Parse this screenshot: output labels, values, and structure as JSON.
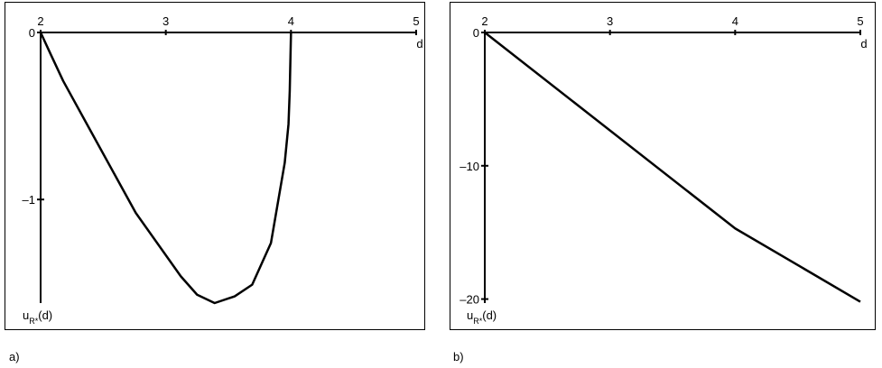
{
  "chart_data": [
    {
      "type": "line",
      "panel_label": "a)",
      "x_label": "d",
      "y_label": {
        "base": "u",
        "sub": "R*",
        "rest": "(d)"
      },
      "x": [
        2.0,
        2.08,
        2.18,
        2.4,
        2.76,
        3.12,
        3.25,
        3.39,
        3.55,
        3.69,
        3.84,
        3.95,
        3.98,
        3.99,
        4.0
      ],
      "values": [
        0,
        -0.13,
        -0.29,
        -0.59,
        -1.08,
        -1.46,
        -1.57,
        -1.62,
        -1.58,
        -1.51,
        -1.26,
        -0.78,
        -0.55,
        -0.35,
        0
      ],
      "color": "#000000",
      "xlim": [
        2,
        5
      ],
      "ylim": [
        -1.62,
        0
      ],
      "xticks": [
        2,
        3,
        4,
        5
      ],
      "yticks": [
        0,
        {
          "value": -1,
          "label": "–1"
        }
      ]
    },
    {
      "type": "line",
      "panel_label": "b)",
      "x_label": "d",
      "y_label": {
        "base": "u",
        "sub": "R*",
        "rest": "(d)"
      },
      "x": [
        2,
        4,
        5
      ],
      "values": [
        0,
        -14.7,
        -20.2
      ],
      "color": "#000000",
      "xlim": [
        2,
        5
      ],
      "ylim": [
        -20.3,
        0
      ],
      "xticks": [
        2,
        3,
        4,
        5
      ],
      "yticks": [
        0,
        {
          "value": -10,
          "label": "–10"
        },
        {
          "value": -20,
          "label": "–20"
        }
      ]
    }
  ]
}
